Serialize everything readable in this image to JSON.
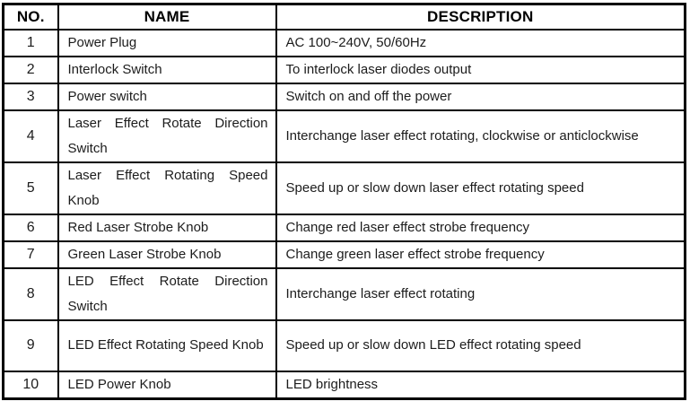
{
  "table": {
    "columns": [
      {
        "key": "no",
        "label": "NO."
      },
      {
        "key": "name",
        "label": "NAME"
      },
      {
        "key": "description",
        "label": "DESCRIPTION"
      }
    ],
    "rows": [
      {
        "no": "1",
        "name": "Power Plug",
        "description": "AC 100~240V, 50/60Hz",
        "tall": false
      },
      {
        "no": "2",
        "name": "Interlock Switch",
        "description": "To interlock laser diodes output",
        "tall": false
      },
      {
        "no": "3",
        "name": "Power switch",
        "description": "Switch on and off the power",
        "tall": false
      },
      {
        "no": "4",
        "name": "Laser Effect Rotate Direction Switch",
        "description": "Interchange laser effect rotating, clockwise or anticlockwise",
        "tall": true
      },
      {
        "no": "5",
        "name": "Laser Effect Rotating Speed Knob",
        "description": "Speed up or slow down laser effect rotating speed",
        "tall": true
      },
      {
        "no": "6",
        "name": "Red Laser Strobe Knob",
        "description": "Change red laser effect strobe frequency",
        "tall": false
      },
      {
        "no": "7",
        "name": "Green Laser Strobe Knob",
        "description": "Change green laser effect strobe frequency",
        "tall": false
      },
      {
        "no": "8",
        "name": "LED Effect Rotate Direction Switch",
        "description": "Interchange laser effect rotating",
        "tall": true
      },
      {
        "no": "9",
        "name": "LED Effect Rotating Speed Knob",
        "description": "Speed up or slow down LED effect rotating speed",
        "tall": true
      },
      {
        "no": "10",
        "name": "LED Power Knob",
        "description": "LED brightness",
        "tall": false
      }
    ]
  },
  "colors": {
    "border": "#000000",
    "text": "#1c1c1c",
    "header_text": "#000000",
    "background": "#ffffff"
  }
}
